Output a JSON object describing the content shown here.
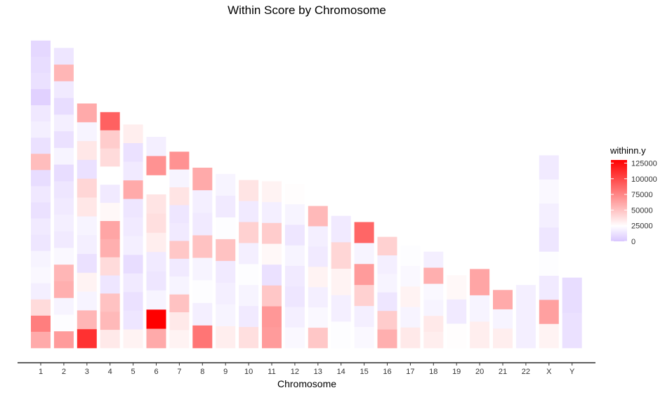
{
  "chart_data": {
    "type": "heatmap",
    "title": "Within Score by Chromosome",
    "xlabel": "Chromosome",
    "ylabel": "",
    "categories": [
      "1",
      "2",
      "3",
      "4",
      "5",
      "6",
      "7",
      "8",
      "9",
      "10",
      "11",
      "12",
      "13",
      "14",
      "15",
      "16",
      "17",
      "18",
      "19",
      "20",
      "21",
      "22",
      "X",
      "Y"
    ],
    "grid": false,
    "color_scale": {
      "name": "withinn.y",
      "low_color": "#d9c6ff",
      "mid_color": "#ffffff",
      "high_color": "#ff0000",
      "domain": [
        0,
        130000
      ],
      "breaks": [
        0,
        25000,
        50000,
        75000,
        100000,
        125000
      ],
      "break_labels": [
        "0",
        "25000",
        "50000",
        "75000",
        "100000",
        "125000"
      ]
    },
    "legend_position": "right",
    "series": [
      {
        "chromosome": "1",
        "within_scores": [
          8000,
          10000,
          12000,
          5000,
          15000,
          18000,
          12000,
          52000,
          10000,
          15000,
          12000,
          16000,
          14000,
          20000,
          22000,
          18000,
          40000,
          78000,
          60000
        ]
      },
      {
        "chromosome": "2",
        "within_scores": [
          14000,
          55000,
          16000,
          10000,
          18000,
          12000,
          20000,
          10000,
          14000,
          16000,
          18000,
          16000,
          22000,
          55000,
          58000,
          20000,
          24000,
          66000
        ]
      },
      {
        "chromosome": "3",
        "within_scores": [
          60000,
          20000,
          35000,
          12000,
          42000,
          35000,
          20000,
          18000,
          12000,
          30000,
          20000,
          55000,
          110000
        ]
      },
      {
        "chromosome": "4",
        "within_scores": [
          90000,
          46000,
          40000,
          25000,
          16000,
          28000,
          62000,
          58000,
          40000,
          14000,
          50000,
          54000,
          34000
        ]
      },
      {
        "chromosome": "5",
        "within_scores": [
          32000,
          12000,
          16000,
          60000,
          14000,
          16000,
          18000,
          10000,
          16000,
          12000,
          14000,
          30000
        ]
      },
      {
        "chromosome": "6",
        "within_scores": [
          18000,
          70000,
          25000,
          36000,
          38000,
          32000,
          16000,
          14000,
          20000,
          130000,
          60000
        ]
      },
      {
        "chromosome": "7",
        "within_scores": [
          70000,
          20000,
          36000,
          14000,
          16000,
          48000,
          16000,
          20000,
          50000,
          34000,
          30000
        ]
      },
      {
        "chromosome": "8",
        "within_scores": [
          60000,
          18000,
          16000,
          50000,
          20000,
          24000,
          18000,
          82000
        ]
      },
      {
        "chromosome": "9",
        "within_scores": [
          20000,
          16000,
          24000,
          50000,
          16000,
          18000,
          20000,
          32000
        ]
      },
      {
        "chromosome": "10",
        "within_scores": [
          36000,
          16000,
          44000,
          18000,
          24000,
          20000,
          16000,
          38000
        ]
      },
      {
        "chromosome": "11",
        "within_scores": [
          30000,
          18000,
          46000,
          28000,
          12000,
          48000,
          68000,
          66000
        ]
      },
      {
        "chromosome": "12",
        "within_scores": [
          26000,
          20000,
          14000,
          20000,
          16000,
          14000,
          18000,
          22000
        ]
      },
      {
        "chromosome": "13",
        "within_scores": [
          54000,
          18000,
          16000,
          30000,
          18000,
          22000,
          48000
        ]
      },
      {
        "chromosome": "14",
        "within_scores": [
          16000,
          42000,
          30000,
          18000,
          24000
        ]
      },
      {
        "chromosome": "15",
        "within_scores": [
          88000,
          20000,
          66000,
          44000,
          18000,
          22000
        ]
      },
      {
        "chromosome": "16",
        "within_scores": [
          44000,
          18000,
          20000,
          14000,
          46000,
          58000
        ]
      },
      {
        "chromosome": "17",
        "within_scores": [
          24000,
          22000,
          30000,
          20000,
          34000
        ]
      },
      {
        "chromosome": "18",
        "within_scores": [
          18000,
          58000,
          22000,
          20000,
          34000,
          32000
        ]
      },
      {
        "chromosome": "19",
        "within_scores": [
          28000,
          16000,
          26000
        ]
      },
      {
        "chromosome": "20",
        "within_scores": [
          62000,
          20000,
          32000
        ]
      },
      {
        "chromosome": "21",
        "within_scores": [
          60000,
          20000,
          32000
        ]
      },
      {
        "chromosome": "22",
        "within_scores": [
          18000
        ]
      },
      {
        "chromosome": "X",
        "within_scores": [
          16000,
          22000,
          18000,
          14000,
          24000,
          16000,
          64000,
          30000
        ]
      },
      {
        "chromosome": "Y",
        "within_scores": [
          10000,
          12000
        ]
      }
    ]
  }
}
